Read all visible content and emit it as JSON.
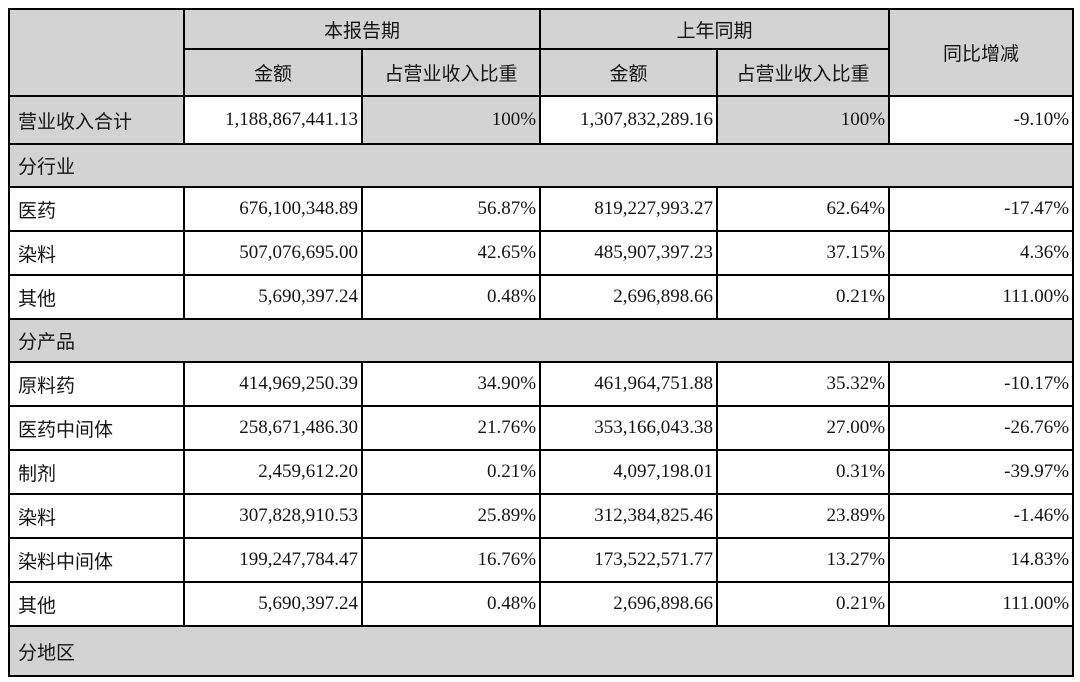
{
  "colors": {
    "shaded_bg": "#d3d3d3",
    "border": "#000000",
    "text": "#141414",
    "page_bg": "#ffffff"
  },
  "table": {
    "header": {
      "corner": "",
      "current_period": "本报告期",
      "prior_period": "上年同期",
      "yoy_change": "同比增减",
      "sub_headers": [
        "金额",
        "占营业收入比重",
        "金额",
        "占营业收入比重"
      ]
    },
    "rows": [
      {
        "type": "total",
        "label": "营业收入合计",
        "cells": [
          "1,188,867,441.13",
          "100%",
          "1,307,832,289.16",
          "100%",
          "-9.10%"
        ]
      },
      {
        "type": "section",
        "label": "分行业"
      },
      {
        "type": "data",
        "label": "医药",
        "cells": [
          "676,100,348.89",
          "56.87%",
          "819,227,993.27",
          "62.64%",
          "-17.47%"
        ]
      },
      {
        "type": "data",
        "label": "染料",
        "cells": [
          "507,076,695.00",
          "42.65%",
          "485,907,397.23",
          "37.15%",
          "4.36%"
        ]
      },
      {
        "type": "data",
        "label": "其他",
        "cells": [
          "5,690,397.24",
          "0.48%",
          "2,696,898.66",
          "0.21%",
          "111.00%"
        ]
      },
      {
        "type": "section",
        "label": "分产品"
      },
      {
        "type": "data",
        "label": "原料药",
        "cells": [
          "414,969,250.39",
          "34.90%",
          "461,964,751.88",
          "35.32%",
          "-10.17%"
        ]
      },
      {
        "type": "data",
        "label": "医药中间体",
        "cells": [
          "258,671,486.30",
          "21.76%",
          "353,166,043.38",
          "27.00%",
          "-26.76%"
        ]
      },
      {
        "type": "data",
        "label": "制剂",
        "cells": [
          "2,459,612.20",
          "0.21%",
          "4,097,198.01",
          "0.31%",
          "-39.97%"
        ]
      },
      {
        "type": "data",
        "label": "染料",
        "cells": [
          "307,828,910.53",
          "25.89%",
          "312,384,825.46",
          "23.89%",
          "-1.46%"
        ]
      },
      {
        "type": "data",
        "label": "染料中间体",
        "cells": [
          "199,247,784.47",
          "16.76%",
          "173,522,571.77",
          "13.27%",
          "14.83%"
        ]
      },
      {
        "type": "data",
        "label": "其他",
        "cells": [
          "5,690,397.24",
          "0.48%",
          "2,696,898.66",
          "0.21%",
          "111.00%"
        ]
      },
      {
        "type": "section",
        "label": "分地区"
      }
    ]
  }
}
